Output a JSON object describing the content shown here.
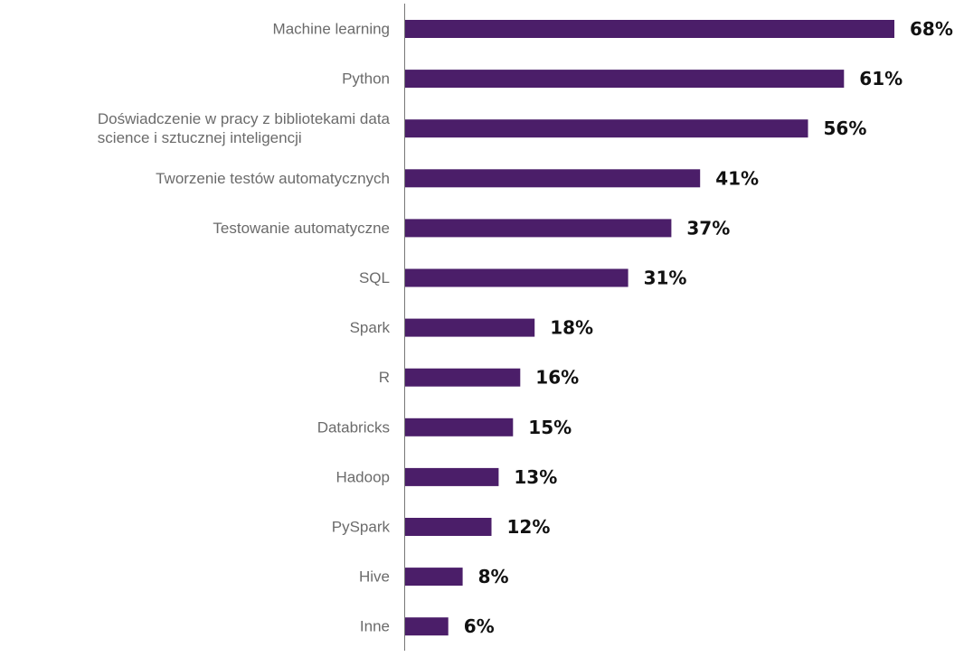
{
  "chart_data": {
    "type": "bar",
    "orientation": "horizontal",
    "title": "",
    "xlabel": "",
    "ylabel": "",
    "xlim": [
      0,
      70
    ],
    "grid": false,
    "bar_color": "#4b1e69",
    "categories": [
      "Machine learning",
      "Python",
      "Doświadczenie w pracy z bibliotekami data science i sztucznej inteligencji",
      "Tworzenie testów automatycznych",
      "Testowanie automatyczne",
      "SQL",
      "Spark",
      "R",
      "Databricks",
      "Hadoop",
      "PySpark",
      "Hive",
      "Inne"
    ],
    "category_lines": [
      [
        "Machine learning"
      ],
      [
        "Python"
      ],
      [
        "Doświadczenie w pracy z bibliotekami data",
        "science i sztucznej inteligencji"
      ],
      [
        "Tworzenie testów automatycznych"
      ],
      [
        "Testowanie automatyczne"
      ],
      [
        "SQL"
      ],
      [
        "Spark"
      ],
      [
        "R"
      ],
      [
        "Databricks"
      ],
      [
        "Hadoop"
      ],
      [
        "PySpark"
      ],
      [
        "Hive"
      ],
      [
        "Inne"
      ]
    ],
    "values": [
      68,
      61,
      56,
      41,
      37,
      31,
      18,
      16,
      15,
      13,
      12,
      8,
      6
    ],
    "data_labels": [
      "68%",
      "61%",
      "56%",
      "41%",
      "37%",
      "31%",
      "18%",
      "16%",
      "15%",
      "13%",
      "12%",
      "8%",
      "6%"
    ]
  }
}
